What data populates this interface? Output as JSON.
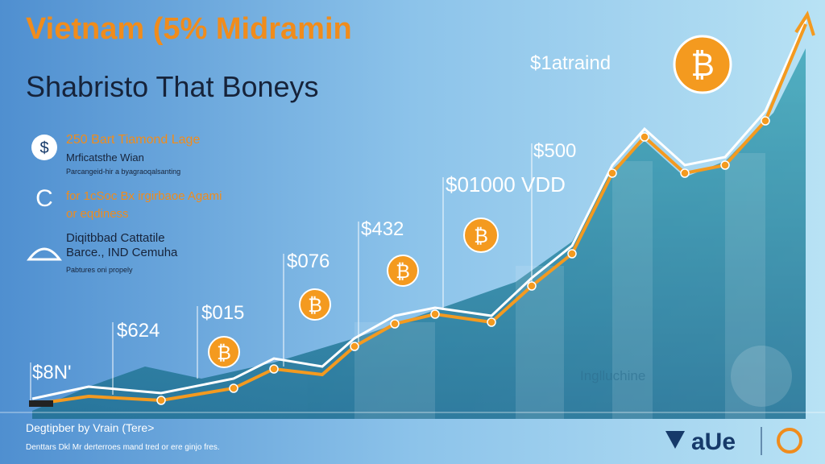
{
  "header": {
    "title": "Vietnam (5% Midramin",
    "subtitle": "Shabristo That Boneys"
  },
  "items": [
    {
      "icon": "$",
      "title": "250 Bart Tiamond Lage",
      "lines": [
        "Mrficatsthe Wian",
        "Parcangeid-hir a byagraoqalsanting"
      ]
    },
    {
      "icon": "C",
      "title": "for 1cSoc Bx irgirbaoe Agami",
      "lines": [
        "or eqdiness"
      ]
    },
    {
      "title": "Diqitbbad Cattatile",
      "lines": [
        "Barce., IND Cemuha",
        "Pabtures oni propely"
      ]
    }
  ],
  "labels": [
    "$8N'",
    "$624",
    "$015",
    "$076",
    "$432",
    "$01000 VDD",
    "$500",
    "$1atraind"
  ],
  "coin_symbol": "₿",
  "watermark": "Inglluchine",
  "footer": {
    "credit": "Degtipber by Vrain (Tere>",
    "note": "Denttars Dkl Mr derterroes mand tred or ere ginjo fres."
  },
  "logo": "aUe"
}
